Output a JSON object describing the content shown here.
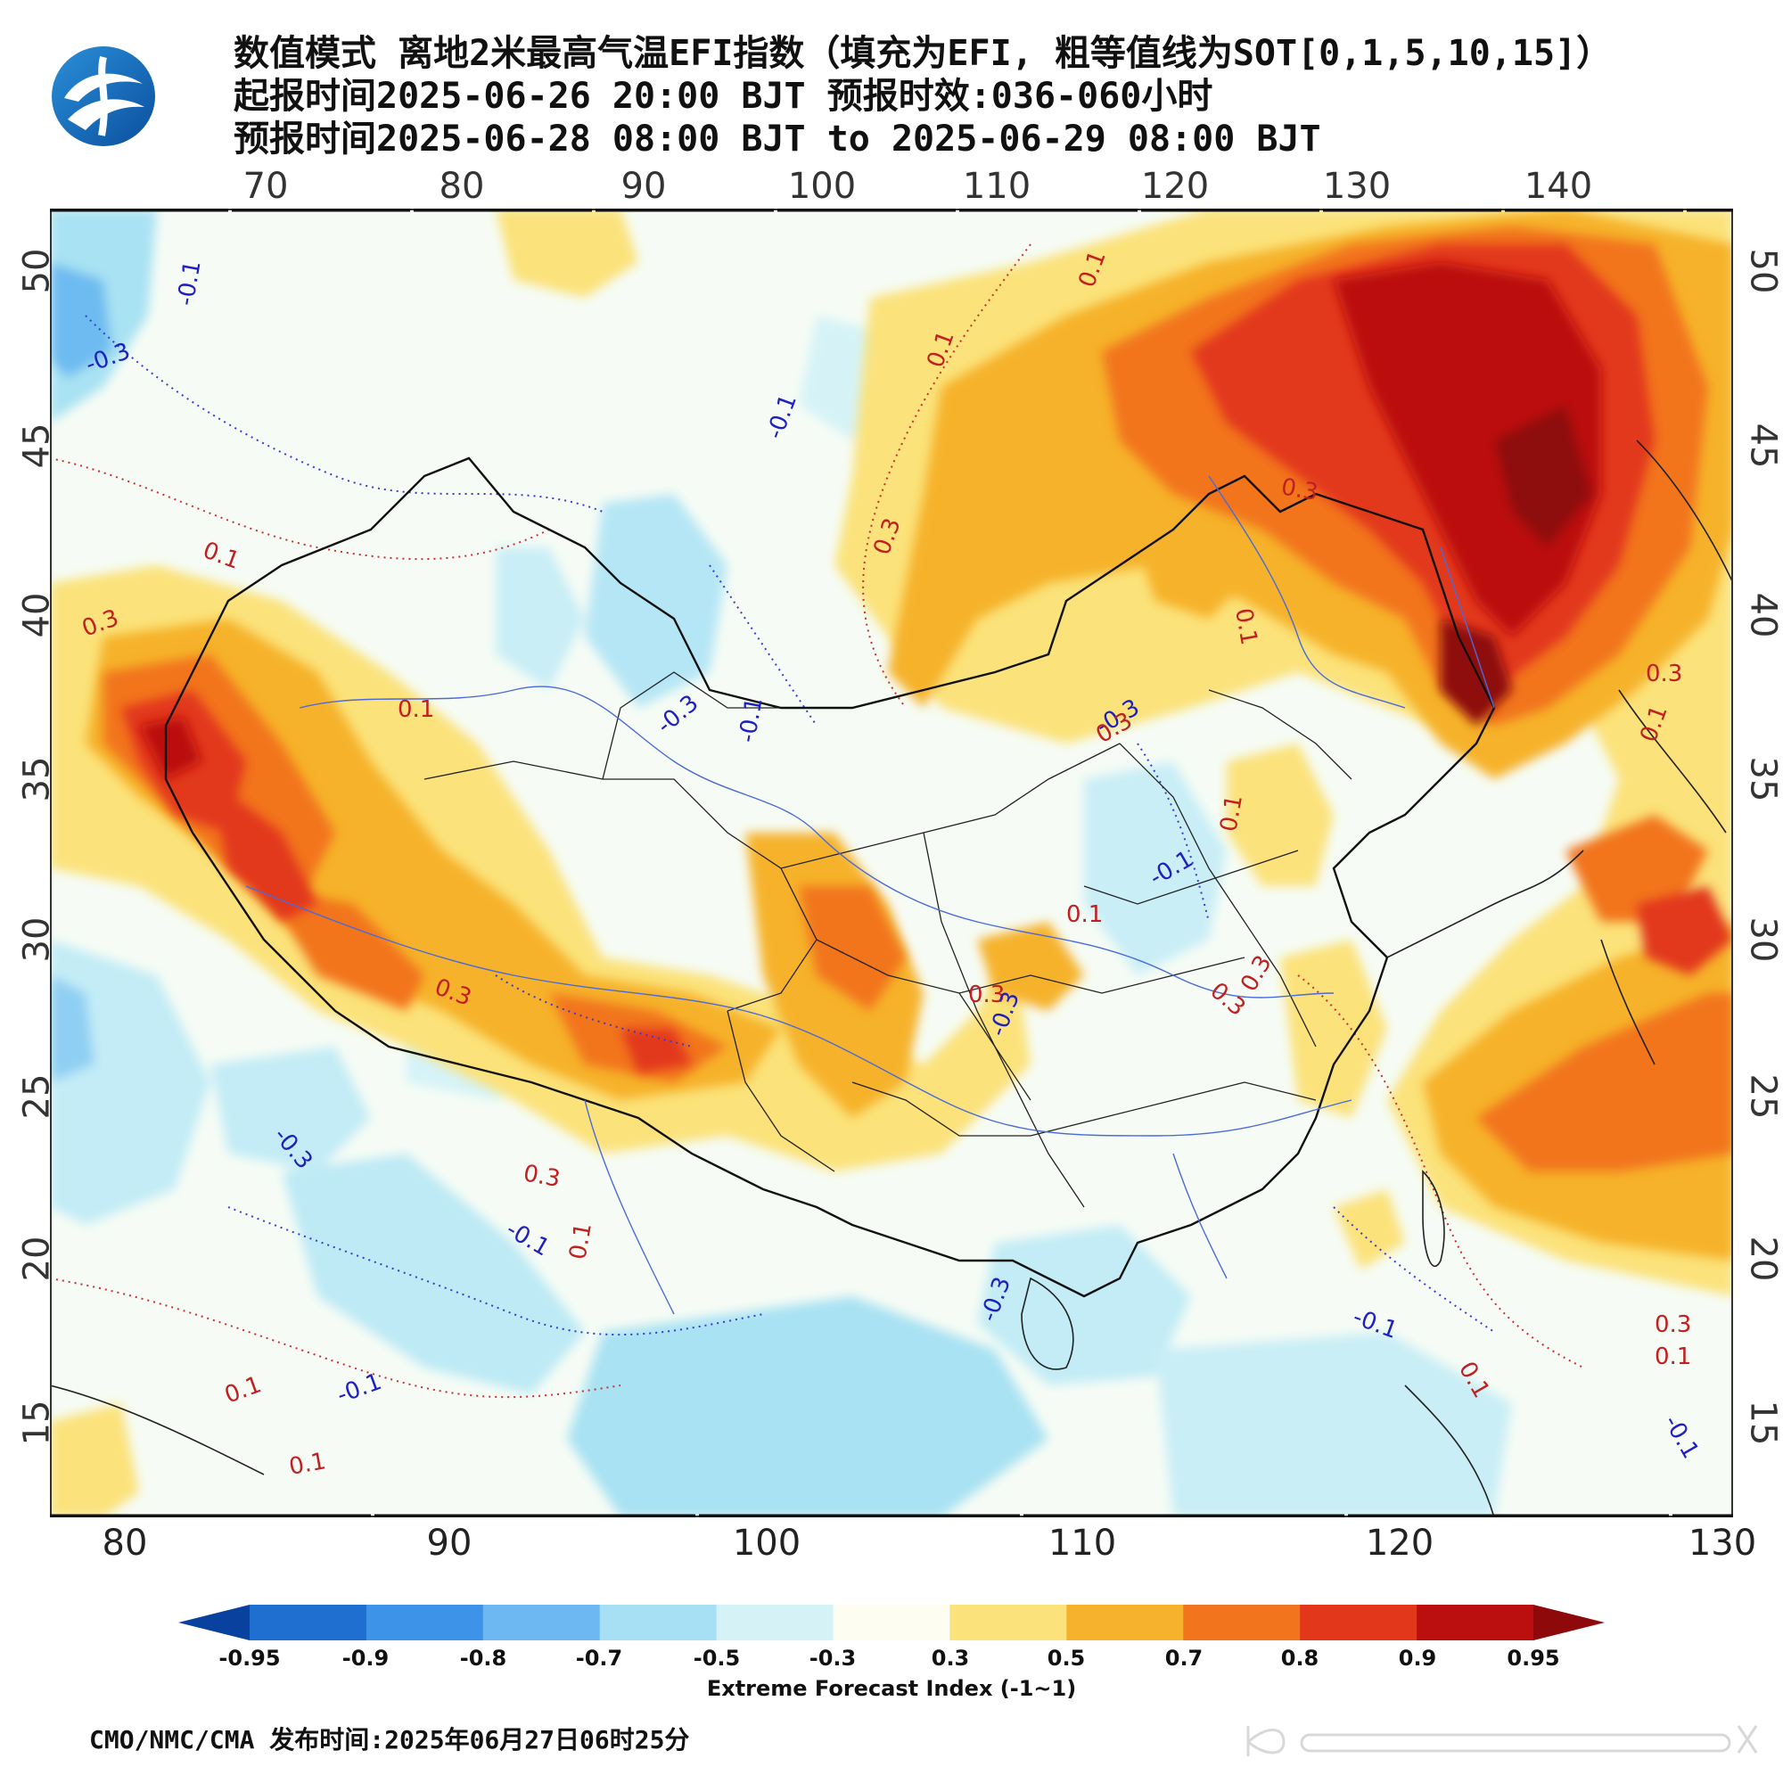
{
  "header": {
    "line1": "数值模式 离地2米最高气温EFI指数（填充为EFI, 粗等值线为SOT[0,1,5,10,15]）",
    "line2": "起报时间2025-06-26 20:00 BJT 预报时效:036-060小时",
    "line3": "预报时间2025-06-28 08:00 BJT to 2025-06-29 08:00 BJT"
  },
  "logo_icon": "cma-logo-icon",
  "axes": {
    "top_lon_ticks": [
      "70",
      "80",
      "90",
      "100",
      "110",
      "120",
      "130",
      "140"
    ],
    "bottom_lon_ticks": [
      "80",
      "90",
      "100",
      "110",
      "120",
      "130"
    ],
    "left_lat_ticks": [
      "50",
      "45",
      "40",
      "35",
      "30",
      "25",
      "20",
      "15"
    ],
    "right_lat_ticks": [
      "50",
      "45",
      "40",
      "35",
      "30",
      "25",
      "20",
      "15"
    ]
  },
  "contour_labels": [
    {
      "text": "-0.1",
      "color": "blue"
    },
    {
      "text": "-0.3",
      "color": "blue"
    },
    {
      "text": "0.1",
      "color": "red"
    },
    {
      "text": "-0.1",
      "color": "blue"
    },
    {
      "text": "0.1",
      "color": "red"
    },
    {
      "text": "0.3",
      "color": "red"
    },
    {
      "text": "0.3",
      "color": "red"
    },
    {
      "text": "0.1",
      "color": "red"
    },
    {
      "text": "0.3",
      "color": "red"
    },
    {
      "text": "0.1",
      "color": "red"
    },
    {
      "text": "-0.3",
      "color": "blue"
    },
    {
      "text": "-0.1",
      "color": "blue"
    },
    {
      "text": "0.1",
      "color": "red"
    },
    {
      "text": "0.3",
      "color": "red"
    },
    {
      "text": "0.1",
      "color": "red"
    },
    {
      "text": "-0.3",
      "color": "blue"
    },
    {
      "text": "0.3",
      "color": "red"
    },
    {
      "text": "0.1",
      "color": "red"
    },
    {
      "text": "-0.1",
      "color": "blue"
    },
    {
      "text": "0.1",
      "color": "red"
    },
    {
      "text": "0.3",
      "color": "red"
    },
    {
      "text": "0.3",
      "color": "red"
    },
    {
      "text": "0.3",
      "color": "red"
    },
    {
      "text": "-0.3",
      "color": "blue"
    },
    {
      "text": "0.3",
      "color": "red"
    },
    {
      "text": "0.3",
      "color": "red"
    },
    {
      "text": "-0.1",
      "color": "blue"
    },
    {
      "text": "0.1",
      "color": "red"
    },
    {
      "text": "0.1",
      "color": "red"
    },
    {
      "text": "-0.1",
      "color": "blue"
    },
    {
      "text": "0.1",
      "color": "red"
    },
    {
      "text": "-0.3",
      "color": "blue"
    },
    {
      "text": "-0.3",
      "color": "blue"
    },
    {
      "text": "-0.1",
      "color": "blue"
    },
    {
      "text": "0.1",
      "color": "red"
    },
    {
      "text": "0.3",
      "color": "red"
    },
    {
      "text": "0.1",
      "color": "red"
    },
    {
      "text": "-0.1",
      "color": "blue"
    }
  ],
  "colorbar": {
    "labels": [
      "-0.95",
      "-0.9",
      "-0.8",
      "-0.7",
      "-0.5",
      "-0.3",
      "0.3",
      "0.5",
      "0.7",
      "0.8",
      "0.9",
      "0.95"
    ],
    "colors": [
      "#08419e",
      "#1f6fd0",
      "#3d93e8",
      "#6db8f2",
      "#a7e0f5",
      "#d5f3f7",
      "#fefdf2",
      "#fbe27a",
      "#f6b22c",
      "#f2741c",
      "#e2371b",
      "#bb0f0f",
      "#8e0a0a"
    ],
    "title": "Extreme Forecast Index (-1~1)"
  },
  "footer": {
    "text": "CMO/NMC/CMA 发布时间:2025年06月27日06时25分"
  },
  "watermark_icon": "weibo-watermark-icon"
}
